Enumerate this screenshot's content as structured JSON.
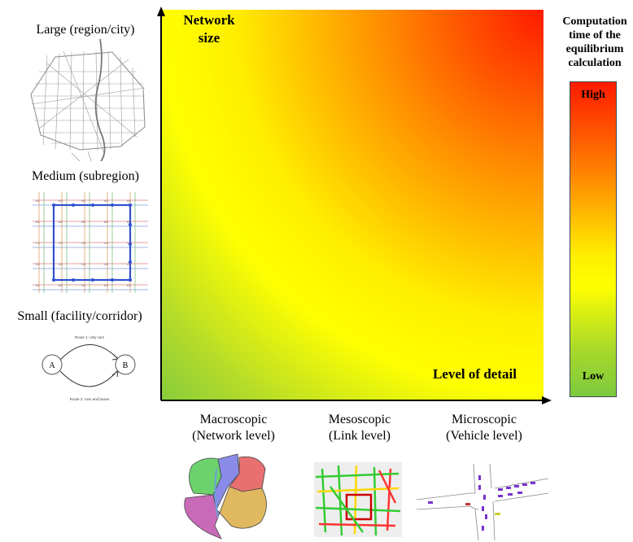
{
  "axes": {
    "y_label_line1": "Network",
    "y_label_line2": "size",
    "x_label": "Level of detail"
  },
  "network_sizes": {
    "large": "Large (region/city)",
    "medium": "Medium (subregion)",
    "small": "Small (facility/corridor)"
  },
  "small_graph": {
    "node_a": "A",
    "node_b": "B",
    "route1": "Route 1: only cars",
    "route2": "Route 2: cars and buses"
  },
  "grid_labels": [
    "A1",
    "A2",
    "A3",
    "A4",
    "A5",
    "B1",
    "B2",
    "B3",
    "B4",
    "B5",
    "C1",
    "C2",
    "C3",
    "C4",
    "C5",
    "D1",
    "D2",
    "D3",
    "D4",
    "D5",
    "E1",
    "E2",
    "E3",
    "E4",
    "E5"
  ],
  "detail_levels": {
    "macro_line1": "Macroscopic",
    "macro_line2": "(Network level)",
    "meso_line1": "Mesoscopic",
    "meso_line2": "(Link level)",
    "micro_line1": "Microscopic",
    "micro_line2": "(Vehicle level)"
  },
  "scale": {
    "title_line1": "Computation",
    "title_line2": "time of the",
    "title_line3": "equilibrium",
    "title_line4": "calculation",
    "high": "High",
    "low": "Low"
  },
  "colors": {
    "low": "#7cc93e",
    "mid": "#ffff00",
    "high": "#ff1a00"
  }
}
